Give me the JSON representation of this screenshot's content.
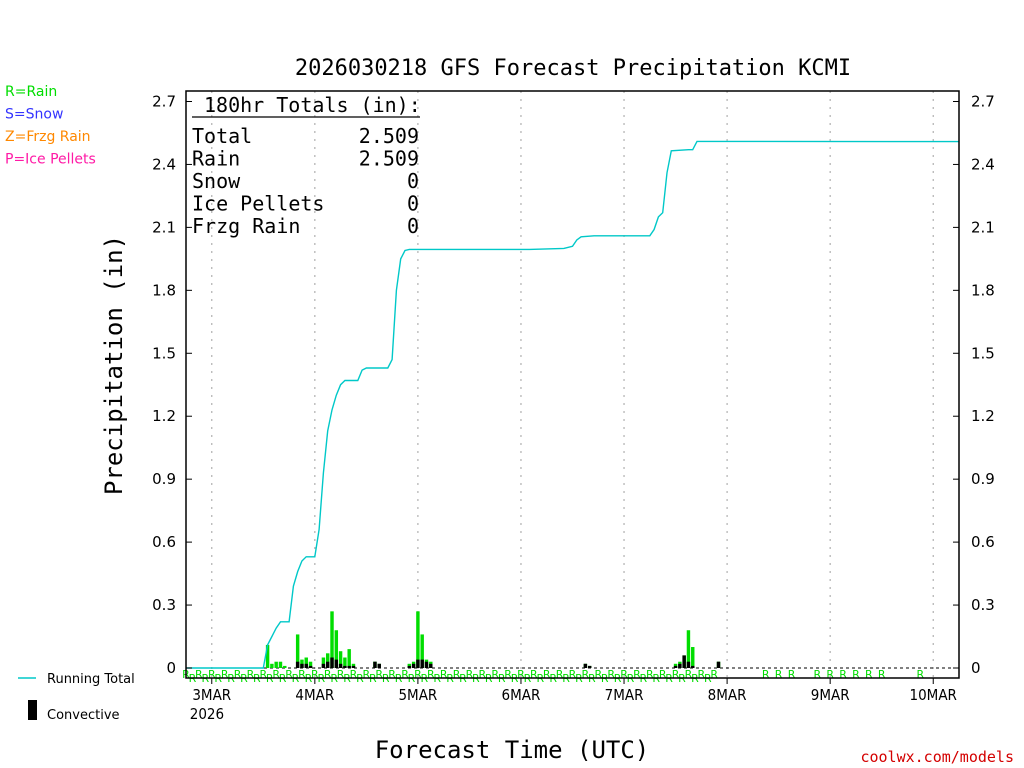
{
  "chart_data": {
    "type": "bar",
    "title": "2026030218 GFS Forecast Precipitation KCMI",
    "ylabel": "Precipitation (in)",
    "xlabel": "Forecast Time (UTC)",
    "ylim": [
      0,
      2.75
    ],
    "xlim_hours": [
      0,
      180
    ],
    "yticks": [
      0,
      0.3,
      0.6,
      0.9,
      1.2,
      1.5,
      1.8,
      2.1,
      2.4,
      2.7
    ],
    "ytick_labels": [
      "0",
      "0.3",
      "0.6",
      "0.9",
      "1.2",
      "1.5",
      "1.8",
      "2.1",
      "2.4",
      "2.7"
    ],
    "xticks": [
      {
        "hour": 6,
        "label": "3MAR",
        "sub": "2026"
      },
      {
        "hour": 30,
        "label": "4MAR",
        "sub": ""
      },
      {
        "hour": 54,
        "label": "5MAR",
        "sub": ""
      },
      {
        "hour": 78,
        "label": "6MAR",
        "sub": ""
      },
      {
        "hour": 102,
        "label": "7MAR",
        "sub": ""
      },
      {
        "hour": 126,
        "label": "8MAR",
        "sub": ""
      },
      {
        "hour": 150,
        "label": "9MAR",
        "sub": ""
      },
      {
        "hour": 174,
        "label": "10MAR",
        "sub": ""
      }
    ],
    "running_total": [
      [
        0,
        0
      ],
      [
        18,
        0
      ],
      [
        19,
        0.11
      ],
      [
        20,
        0.15
      ],
      [
        21,
        0.19
      ],
      [
        22,
        0.22
      ],
      [
        23,
        0.22
      ],
      [
        24,
        0.22
      ],
      [
        25,
        0.39
      ],
      [
        26,
        0.46
      ],
      [
        27,
        0.51
      ],
      [
        28,
        0.53
      ],
      [
        29,
        0.53
      ],
      [
        30,
        0.53
      ],
      [
        31,
        0.66
      ],
      [
        32,
        0.93
      ],
      [
        33,
        1.13
      ],
      [
        34,
        1.23
      ],
      [
        35,
        1.3
      ],
      [
        36,
        1.35
      ],
      [
        37,
        1.37
      ],
      [
        39,
        1.37
      ],
      [
        40,
        1.37
      ],
      [
        41,
        1.42
      ],
      [
        42,
        1.43
      ],
      [
        47,
        1.43
      ],
      [
        48,
        1.47
      ],
      [
        49,
        1.8
      ],
      [
        50,
        1.95
      ],
      [
        51,
        1.99
      ],
      [
        52,
        1.995
      ],
      [
        70,
        1.995
      ],
      [
        80,
        1.995
      ],
      [
        88,
        2.0
      ],
      [
        90,
        2.01
      ],
      [
        91,
        2.04
      ],
      [
        92,
        2.055
      ],
      [
        95,
        2.06
      ],
      [
        105,
        2.06
      ],
      [
        108,
        2.06
      ],
      [
        109,
        2.09
      ],
      [
        110,
        2.15
      ],
      [
        111,
        2.17
      ],
      [
        112,
        2.36
      ],
      [
        113,
        2.465
      ],
      [
        117,
        2.47
      ],
      [
        118,
        2.47
      ],
      [
        119,
        2.51
      ],
      [
        180,
        2.509
      ]
    ],
    "bars": [
      [
        19,
        0.11,
        0
      ],
      [
        20,
        0.02,
        0
      ],
      [
        21,
        0.03,
        0
      ],
      [
        22,
        0.03,
        0
      ],
      [
        23,
        0.01,
        0
      ],
      [
        26,
        0.16,
        0.03
      ],
      [
        27,
        0.04,
        0.02
      ],
      [
        28,
        0.05,
        0.02
      ],
      [
        29,
        0.03,
        0.01
      ],
      [
        32,
        0.05,
        0.02
      ],
      [
        33,
        0.07,
        0.03
      ],
      [
        34,
        0.27,
        0.05
      ],
      [
        35,
        0.18,
        0.04
      ],
      [
        36,
        0.08,
        0.02
      ],
      [
        37,
        0.05,
        0.01
      ],
      [
        38,
        0.09,
        0.01
      ],
      [
        39,
        0.02,
        0.01
      ],
      [
        44,
        0.03,
        0.03
      ],
      [
        45,
        0.02,
        0.02
      ],
      [
        52,
        0.02,
        0.01
      ],
      [
        53,
        0.03,
        0.02
      ],
      [
        54,
        0.27,
        0.04
      ],
      [
        55,
        0.16,
        0.04
      ],
      [
        56,
        0.04,
        0.03
      ],
      [
        57,
        0.03,
        0.02
      ],
      [
        93,
        0.02,
        0.02
      ],
      [
        94,
        0.01,
        0.01
      ],
      [
        114,
        0.02,
        0.01
      ],
      [
        115,
        0.03,
        0.02
      ],
      [
        116,
        0.06,
        0.06
      ],
      [
        117,
        0.18,
        0.03
      ],
      [
        118,
        0.1,
        0.01
      ],
      [
        124,
        0.03,
        0.03
      ]
    ],
    "ptype_markers": {
      "letter": "R",
      "dense_ranges": [
        [
          0,
          124
        ],
        [
          0,
          124
        ]
      ],
      "sparse_hours": [
        135,
        138,
        141,
        147,
        150,
        153,
        156,
        159,
        162,
        171
      ]
    },
    "totals_box": {
      "header": "180hr Totals (in):",
      "rows": [
        {
          "label": "Total",
          "value": "2.509"
        },
        {
          "label": "Rain",
          "value": "2.509"
        },
        {
          "label": "Snow",
          "value": "0"
        },
        {
          "label": "Ice Pellets",
          "value": "0"
        },
        {
          "label": "Frzg Rain",
          "value": "0"
        }
      ]
    },
    "type_legend": [
      {
        "text": "R=Rain",
        "color": "#00dd00"
      },
      {
        "text": "S=Snow",
        "color": "#3333ff"
      },
      {
        "text": "Z=Frzg Rain",
        "color": "#ff8800"
      },
      {
        "text": "P=Ice Pellets",
        "color": "#ff1aa6"
      }
    ],
    "series_legend": [
      {
        "text": "Running Total",
        "color": "#00c8c8",
        "kind": "line"
      },
      {
        "text": "Convective",
        "color": "#000000",
        "kind": "bar"
      }
    ],
    "credit": "coolwx.com/models",
    "colors": {
      "running_total": "#00c8c8",
      "rain_bar": "#00dd00",
      "convective_bar": "#000000",
      "credit": "#d40000"
    }
  }
}
